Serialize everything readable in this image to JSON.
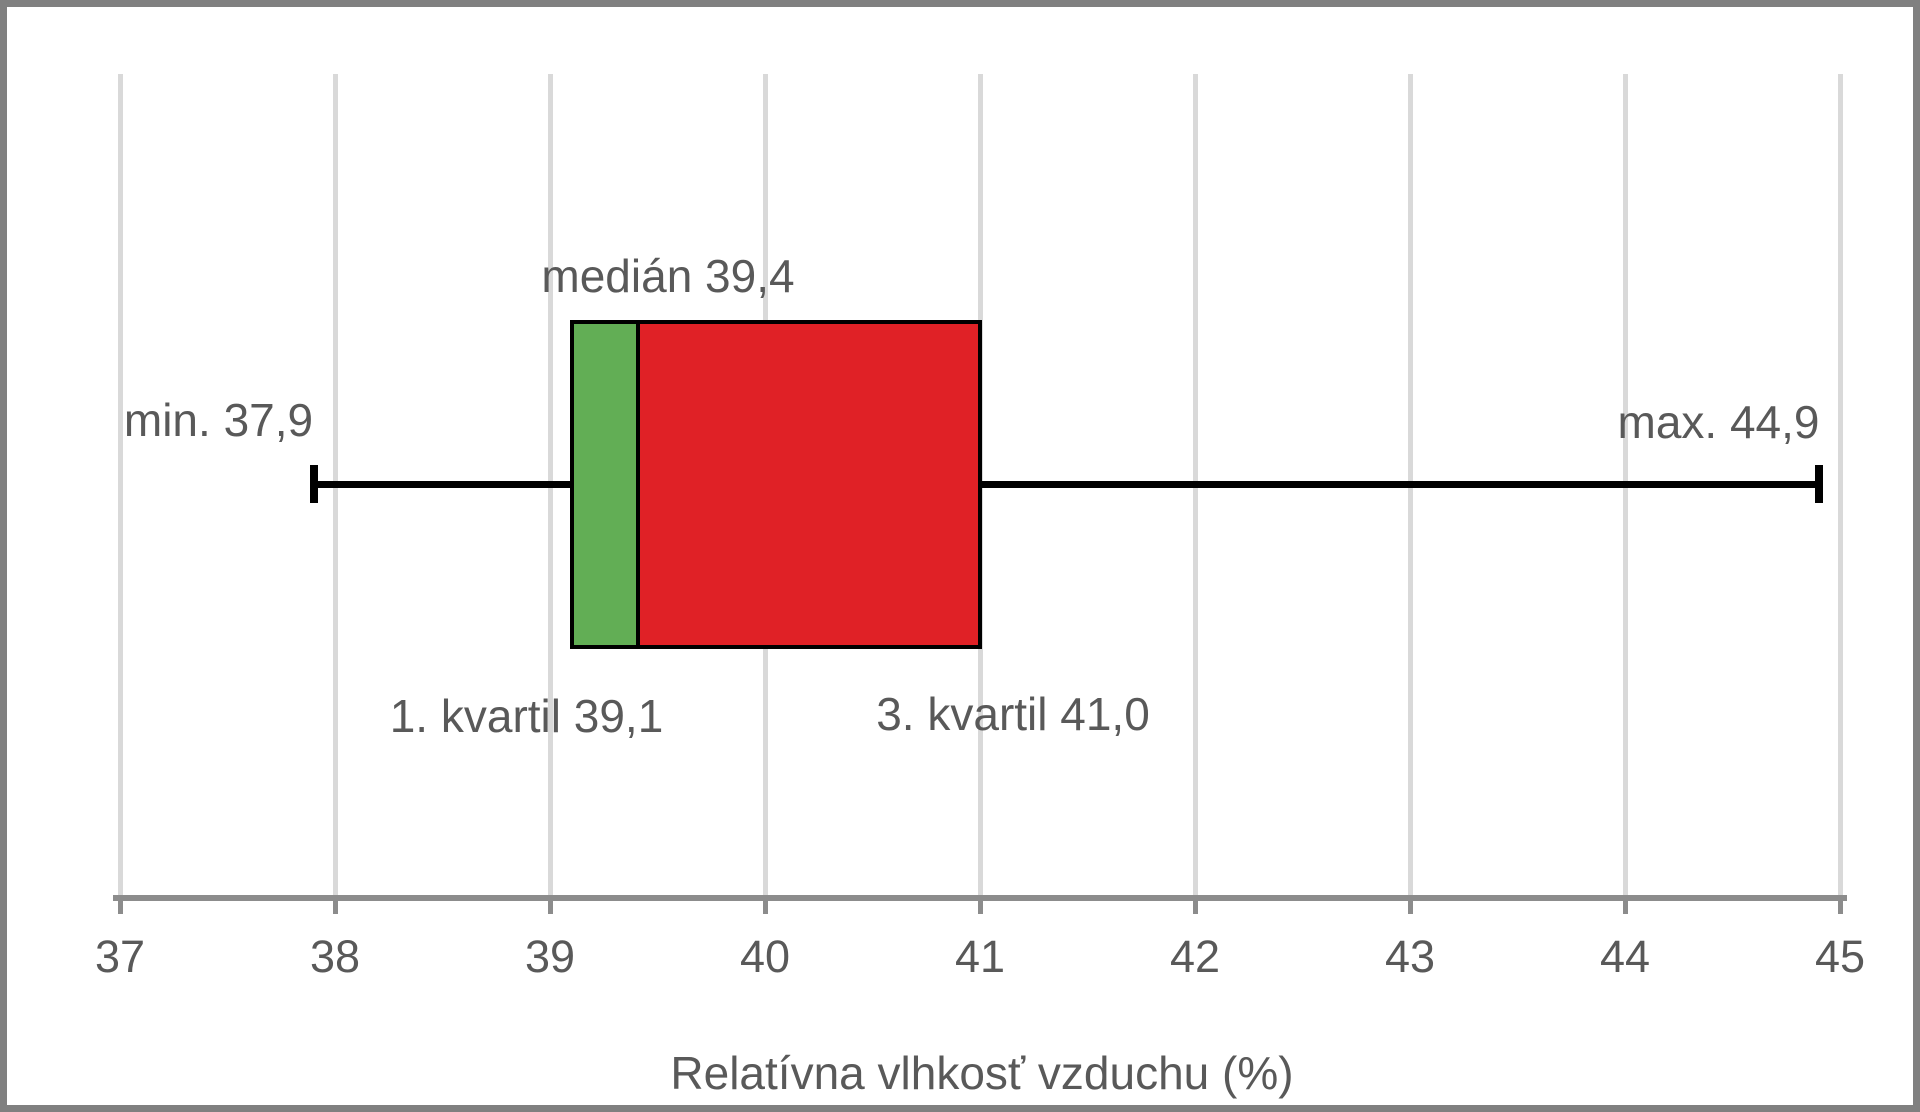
{
  "chart_data": {
    "type": "boxplot",
    "orientation": "horizontal",
    "xlabel": "Relatívna vlhkosť vzduchu (%)",
    "x_axis": {
      "min": 37,
      "max": 45,
      "tick_values": [
        37,
        38,
        39,
        40,
        41,
        42,
        43,
        44,
        45
      ],
      "tick_labels": [
        "37",
        "38",
        "39",
        "40",
        "41",
        "42",
        "43",
        "44",
        "45"
      ]
    },
    "stats": {
      "min": 37.9,
      "q1": 39.1,
      "median": 39.4,
      "q3": 41.0,
      "max": 44.9
    },
    "annotations": {
      "median_label": "medián 39,4",
      "min_label": "min. 37,9",
      "max_label": "max. 44,9",
      "q1_label": "1. kvartil 39,1",
      "q3_label": "3. kvartil 41,0"
    },
    "grid": true,
    "legend": false,
    "colors": {
      "lower_box_fill": "#62ae55",
      "upper_box_fill": "#e02126",
      "box_border": "#000000",
      "whisker": "#000000",
      "gridline": "#d9d9d9",
      "axis_line": "#8c8c8c",
      "text": "#595959",
      "frame_border": "#808080",
      "background": "#ffffff"
    }
  }
}
